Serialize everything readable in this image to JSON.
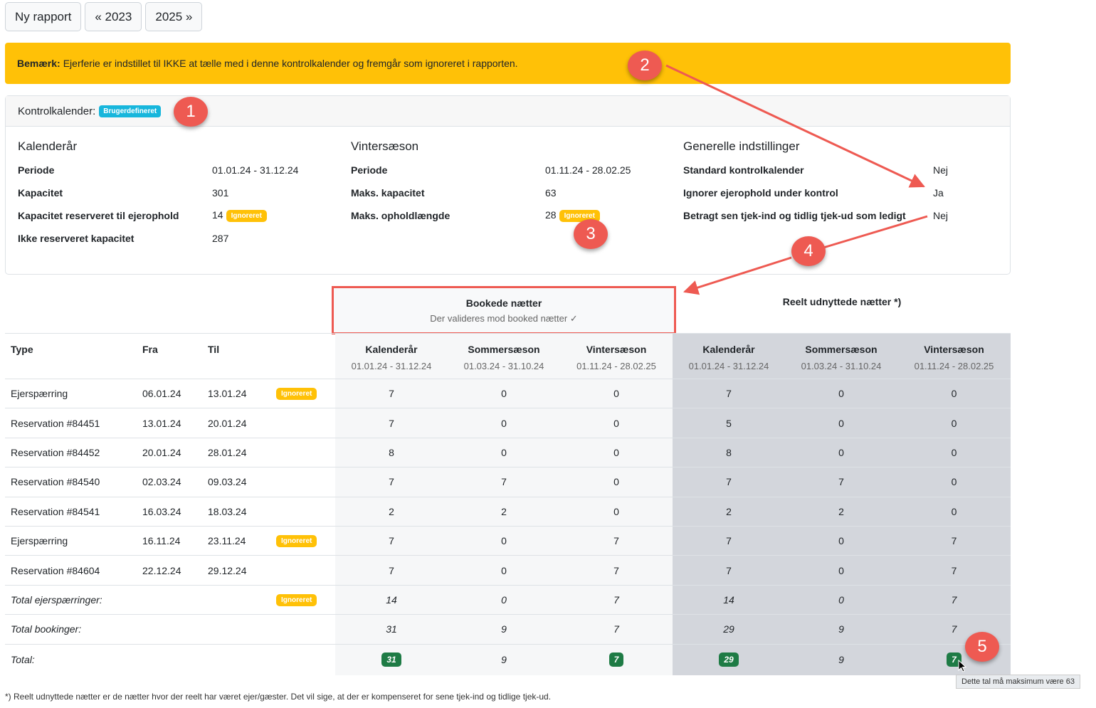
{
  "toolbar": {
    "new_report": "Ny rapport",
    "prev_year": "« 2023",
    "next_year": "2025 »"
  },
  "alert": {
    "strong": "Bemærk:",
    "text": "Ejerferie er indstillet til IKKE at tælle med i denne kontrolkalender og fremgår som ignoreret i rapporten."
  },
  "card": {
    "header_label": "Kontrolkalender:",
    "header_badge": "Brugerdefineret",
    "calendar_year": {
      "title": "Kalenderår",
      "rows": [
        {
          "k": "Periode",
          "v": "01.01.24 - 31.12.24"
        },
        {
          "k": "Kapacitet",
          "v": "301"
        },
        {
          "k": "Kapacitet reserveret til ejerophold",
          "v": "14",
          "badge": "Ignoreret"
        },
        {
          "k": "Ikke reserveret kapacitet",
          "v": "287"
        }
      ]
    },
    "winter": {
      "title": "Vintersæson",
      "rows": [
        {
          "k": "Periode",
          "v": "01.11.24 - 28.02.25"
        },
        {
          "k": "Maks. kapacitet",
          "v": "63"
        },
        {
          "k": "Maks. opholdlængde",
          "v": "28",
          "badge": "Ignoreret"
        }
      ]
    },
    "general": {
      "title": "Generelle indstillinger",
      "rows": [
        {
          "k": "Standard kontrolkalender",
          "v": "Nej"
        },
        {
          "k": "Ignorer ejerophold under kontrol",
          "v": "Ja"
        },
        {
          "k": "Betragt sen tjek-ind og tidlig tjek-ud som ledigt",
          "v": "Nej"
        }
      ]
    }
  },
  "booked_head": {
    "title": "Bookede nætter",
    "sub": "Der valideres mod booked nætter ✓"
  },
  "real_head": {
    "title": "Reelt udnyttede nætter *)"
  },
  "columns": {
    "type": "Type",
    "from": "Fra",
    "to": "Til",
    "periods": [
      {
        "name": "Kalenderår",
        "range": "01.01.24 - 31.12.24"
      },
      {
        "name": "Sommersæson",
        "range": "01.03.24 - 31.10.24"
      },
      {
        "name": "Vintersæson",
        "range": "01.11.24 - 28.02.25"
      },
      {
        "name": "Kalenderår",
        "range": "01.01.24 - 31.12.24"
      },
      {
        "name": "Sommersæson",
        "range": "01.03.24 - 31.10.24"
      },
      {
        "name": "Vintersæson",
        "range": "01.11.24 - 28.02.25"
      }
    ]
  },
  "rows": [
    {
      "type": "Ejerspærring",
      "from": "06.01.24",
      "to": "13.01.24",
      "badge": "Ignoreret",
      "v": [
        "7",
        "0",
        "0",
        "7",
        "0",
        "0"
      ]
    },
    {
      "type": "Reservation #84451",
      "from": "13.01.24",
      "to": "20.01.24",
      "badge": "",
      "v": [
        "7",
        "0",
        "0",
        "5",
        "0",
        "0"
      ]
    },
    {
      "type": "Reservation #84452",
      "from": "20.01.24",
      "to": "28.01.24",
      "badge": "",
      "v": [
        "8",
        "0",
        "0",
        "8",
        "0",
        "0"
      ]
    },
    {
      "type": "Reservation #84540",
      "from": "02.03.24",
      "to": "09.03.24",
      "badge": "",
      "v": [
        "7",
        "7",
        "0",
        "7",
        "7",
        "0"
      ]
    },
    {
      "type": "Reservation #84541",
      "from": "16.03.24",
      "to": "18.03.24",
      "badge": "",
      "v": [
        "2",
        "2",
        "0",
        "2",
        "2",
        "0"
      ]
    },
    {
      "type": "Ejerspærring",
      "from": "16.11.24",
      "to": "23.11.24",
      "badge": "Ignoreret",
      "v": [
        "7",
        "0",
        "7",
        "7",
        "0",
        "7"
      ]
    },
    {
      "type": "Reservation #84604",
      "from": "22.12.24",
      "to": "29.12.24",
      "badge": "",
      "v": [
        "7",
        "0",
        "7",
        "7",
        "0",
        "7"
      ]
    }
  ],
  "totals": [
    {
      "label": "Total ejerspærringer:",
      "badge": "Ignoreret",
      "v": [
        "14",
        "0",
        "7",
        "14",
        "0",
        "7"
      ]
    },
    {
      "label": "Total bookinger:",
      "badge": "",
      "v": [
        "31",
        "9",
        "7",
        "29",
        "9",
        "7"
      ]
    }
  ],
  "grand_total": {
    "label": "Total:",
    "v": [
      "31",
      "9",
      "7",
      "29",
      "9",
      "7"
    ]
  },
  "footnote": "*) Reelt udnyttede nætter er de nætter hvor der reelt har været ejer/gæster. Det vil sige, at der er kompenseret for sene tjek-ind og tidlige tjek-ud.",
  "tooltip": "Dette tal må maksimum være 63",
  "callouts": [
    "1",
    "2",
    "3",
    "4",
    "5"
  ],
  "colors": {
    "warning": "#ffc107",
    "info": "#17b6dc",
    "success": "#1e7b45",
    "callout": "#ee5a52"
  }
}
